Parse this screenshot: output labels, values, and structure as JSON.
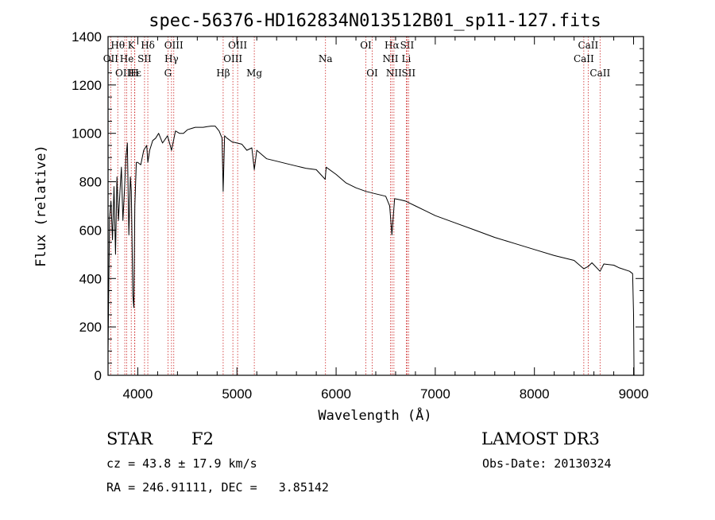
{
  "chart_data": {
    "type": "line",
    "title": "spec-56376-HD162834N013512B01_sp11-127.fits",
    "xlabel": "Wavelength (Å)",
    "ylabel": "Flux (relative)",
    "xlim": [
      3700,
      9100
    ],
    "ylim": [
      0,
      1400
    ],
    "xticks": [
      4000,
      5000,
      6000,
      7000,
      8000,
      9000
    ],
    "yticks": [
      0,
      200,
      400,
      600,
      800,
      1000,
      1200,
      1400
    ],
    "colors": {
      "spectrum": "#000000",
      "line_marker": "#cc2222"
    },
    "spectrum": {
      "name": "flux",
      "x": [
        3700,
        3715,
        3730,
        3745,
        3760,
        3775,
        3790,
        3805,
        3820,
        3835,
        3850,
        3865,
        3880,
        3895,
        3910,
        3925,
        3935,
        3950,
        3960,
        3970,
        3985,
        4000,
        4030,
        4060,
        4090,
        4101,
        4120,
        4150,
        4180,
        4210,
        4250,
        4300,
        4340,
        4380,
        4420,
        4460,
        4500,
        4540,
        4580,
        4620,
        4660,
        4700,
        4740,
        4780,
        4820,
        4850,
        4861,
        4875,
        4900,
        4950,
        5000,
        5050,
        5100,
        5150,
        5175,
        5200,
        5300,
        5400,
        5500,
        5600,
        5700,
        5800,
        5890,
        5900,
        6000,
        6100,
        6200,
        6300,
        6400,
        6500,
        6540,
        6563,
        6590,
        6650,
        6700,
        6800,
        6900,
        7000,
        7200,
        7400,
        7600,
        7800,
        8000,
        8200,
        8400,
        8498,
        8542,
        8580,
        8662,
        8700,
        8800,
        8850,
        8960,
        8990,
        9000,
        9005
      ],
      "y": [
        100,
        650,
        720,
        560,
        780,
        500,
        820,
        640,
        760,
        860,
        640,
        760,
        900,
        960,
        580,
        820,
        760,
        330,
        280,
        700,
        880,
        880,
        870,
        930,
        950,
        880,
        930,
        970,
        980,
        1000,
        960,
        990,
        930,
        1010,
        1000,
        1000,
        1015,
        1020,
        1025,
        1025,
        1025,
        1028,
        1030,
        1030,
        1010,
        980,
        760,
        990,
        980,
        965,
        960,
        955,
        930,
        940,
        850,
        930,
        895,
        885,
        875,
        865,
        855,
        850,
        810,
        860,
        830,
        795,
        775,
        760,
        750,
        740,
        700,
        580,
        730,
        725,
        720,
        700,
        680,
        660,
        630,
        600,
        570,
        545,
        520,
        495,
        475,
        440,
        450,
        465,
        430,
        460,
        455,
        445,
        430,
        420,
        250,
        0
      ]
    },
    "spectral_lines": [
      {
        "label": "Hθ",
        "wave": 3798,
        "row": 1
      },
      {
        "label": "K",
        "wave": 3934,
        "row": 1
      },
      {
        "label": "Hδ",
        "wave": 4101,
        "row": 1
      },
      {
        "label": "OIII",
        "wave": 4363,
        "row": 1
      },
      {
        "label": "OIII",
        "wave": 5007,
        "row": 1
      },
      {
        "label": "OI",
        "wave": 6300,
        "row": 1
      },
      {
        "label": "Hα",
        "wave": 6563,
        "row": 1
      },
      {
        "label": "SII",
        "wave": 6716,
        "row": 1
      },
      {
        "label": "CaII",
        "wave": 8542,
        "row": 1
      },
      {
        "label": "OII",
        "wave": 3727,
        "row": 2
      },
      {
        "label": "He",
        "wave": 3889,
        "row": 2
      },
      {
        "label": "SII",
        "wave": 4068,
        "row": 2
      },
      {
        "label": "Hγ",
        "wave": 4340,
        "row": 2
      },
      {
        "label": "OIII",
        "wave": 4959,
        "row": 2
      },
      {
        "label": "Na",
        "wave": 5893,
        "row": 2
      },
      {
        "label": "NII",
        "wave": 6548,
        "row": 2
      },
      {
        "label": "Li",
        "wave": 6708,
        "row": 2
      },
      {
        "label": "CaII",
        "wave": 8498,
        "row": 2
      },
      {
        "label": "OIII",
        "wave": 3869,
        "row": 3
      },
      {
        "label": "Hε",
        "wave": 3970,
        "row": 3
      },
      {
        "label": "H",
        "wave": 3968,
        "row": 3
      },
      {
        "label": "G",
        "wave": 4304,
        "row": 3
      },
      {
        "label": "Hβ",
        "wave": 4861,
        "row": 3
      },
      {
        "label": "Mg",
        "wave": 5175,
        "row": 3
      },
      {
        "label": "OI",
        "wave": 6364,
        "row": 3
      },
      {
        "label": "NII",
        "wave": 6583,
        "row": 3
      },
      {
        "label": "SII",
        "wave": 6731,
        "row": 3
      },
      {
        "label": "CaII",
        "wave": 8662,
        "row": 3
      }
    ]
  },
  "info": {
    "object_class": "STAR",
    "subclass": "F2",
    "survey": "LAMOST DR3",
    "redshift": "cz = 43.8 ± 17.9 km/s",
    "obs_date": "Obs-Date: 20130324",
    "coords": "RA = 246.91111, DEC =   3.85142"
  }
}
